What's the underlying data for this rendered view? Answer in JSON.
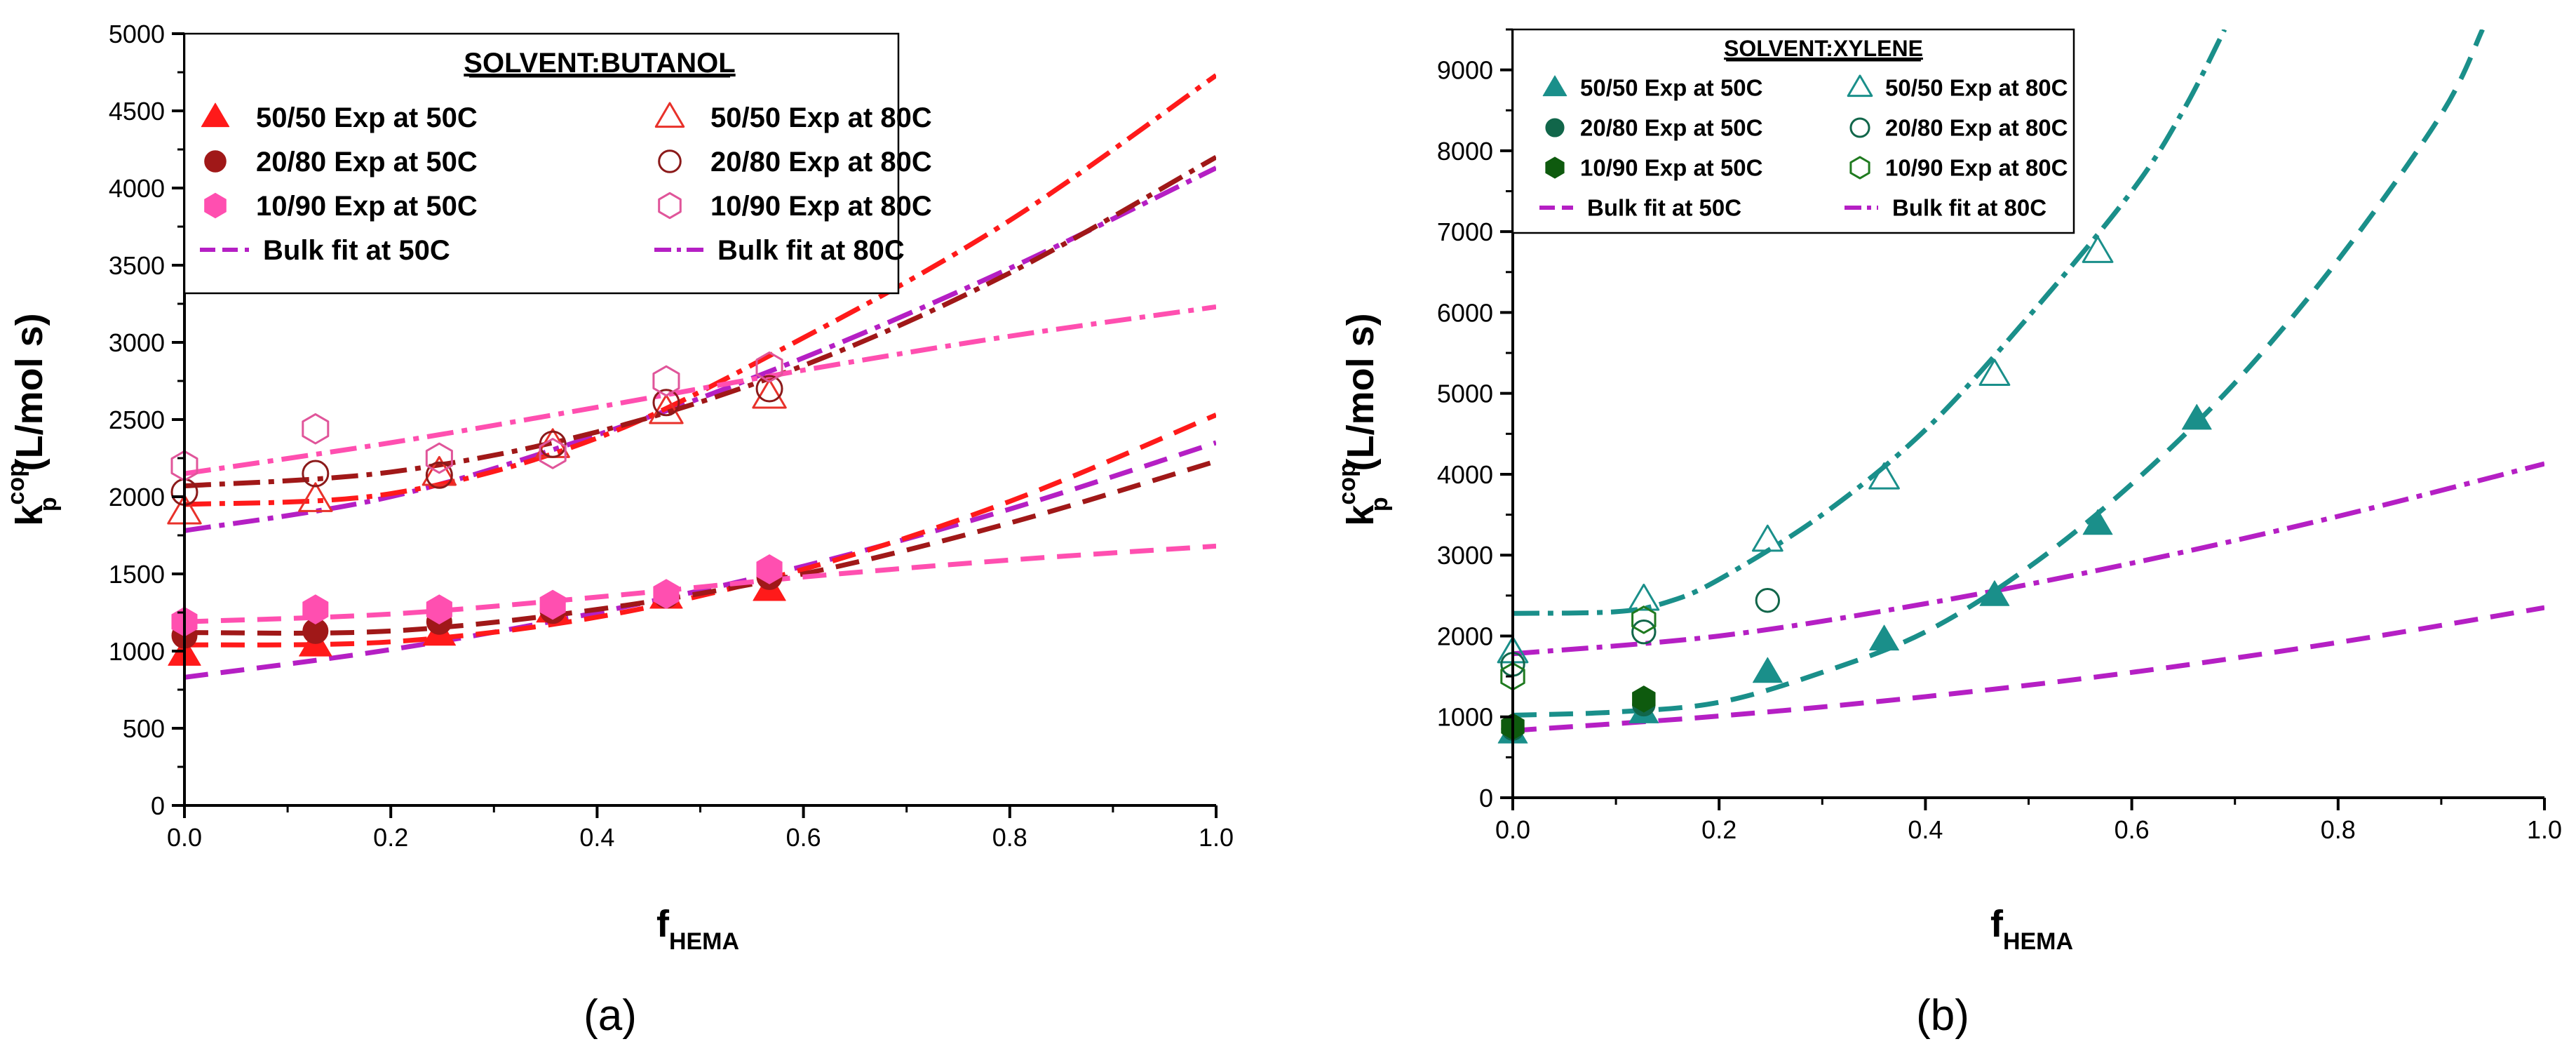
{
  "chart_data": [
    {
      "id": "a",
      "type": "scatter",
      "panel_label": "(a)",
      "ylabel_main": "k",
      "ylabel_sub": "p",
      "ylabel_sup": "cop",
      "ylabel_units": " (L/mol s)",
      "xlabel_main": "f",
      "xlabel_sub": "HEMA",
      "xlim": [
        0,
        1.0
      ],
      "ylim": [
        0,
        5000
      ],
      "xticks": [
        0,
        0.2,
        0.4,
        0.6,
        0.8,
        1.0
      ],
      "xtick_labels": [
        "0.0",
        "0.2",
        "0.4",
        "0.6",
        "0.8",
        "1.0"
      ],
      "yticks": [
        0,
        500,
        1000,
        1500,
        2000,
        2500,
        3000,
        3500,
        4000,
        4500,
        5000
      ],
      "ytick_labels": [
        "0",
        "500",
        "1000",
        "1500",
        "2000",
        "2500",
        "3000",
        "3500",
        "4000",
        "4500",
        "5000"
      ],
      "legend": {
        "title": "SOLVENT:BUTANOL",
        "position": "top-left",
        "entries": [
          {
            "label": "50/50 Exp at 50C",
            "marker": "triangle",
            "fill": true,
            "color": "#ff1a1a"
          },
          {
            "label": "50/50 Exp at 80C",
            "marker": "triangle",
            "fill": false,
            "color": "#e8312a"
          },
          {
            "label": "20/80 Exp at 50C",
            "marker": "circle",
            "fill": true,
            "color": "#a01818"
          },
          {
            "label": "20/80 Exp at 80C",
            "marker": "circle",
            "fill": false,
            "color": "#8b1a1a"
          },
          {
            "label": "10/90 Exp at 50C",
            "marker": "hexagon",
            "fill": true,
            "color": "#ff4fb0"
          },
          {
            "label": "10/90 Exp at 80C",
            "marker": "hexagon",
            "fill": false,
            "color": "#e0559a"
          },
          {
            "label": "Bulk fit at 50C",
            "line": "dash",
            "color": "#b51fc4"
          },
          {
            "label": "Bulk fit at 80C",
            "line": "dashdot",
            "color": "#b51fc4"
          }
        ]
      },
      "series": [
        {
          "name": "50/50 Exp at 50C",
          "marker": "triangle",
          "fill": true,
          "color": "#ff1a1a",
          "x": [
            0,
            0.127,
            0.247,
            0.357,
            0.467,
            0.567
          ],
          "y": [
            980,
            1040,
            1110,
            1260,
            1350,
            1400
          ]
        },
        {
          "name": "50/50 Exp at 80C",
          "marker": "triangle",
          "fill": false,
          "color": "#e8312a",
          "x": [
            0,
            0.127,
            0.247,
            0.357,
            0.467,
            0.567
          ],
          "y": [
            1900,
            1980,
            2150,
            2330,
            2550,
            2650
          ]
        },
        {
          "name": "20/80 Exp at 50C",
          "marker": "circle",
          "fill": true,
          "color": "#a01818",
          "x": [
            0,
            0.127,
            0.247,
            0.357,
            0.467,
            0.567
          ],
          "y": [
            1100,
            1130,
            1190,
            1260,
            1360,
            1480
          ]
        },
        {
          "name": "20/80 Exp at 80C",
          "marker": "circle",
          "fill": false,
          "color": "#8b1a1a",
          "x": [
            0,
            0.127,
            0.247,
            0.357,
            0.467,
            0.567
          ],
          "y": [
            2030,
            2150,
            2140,
            2340,
            2610,
            2700
          ]
        },
        {
          "name": "10/90 Exp at 50C",
          "marker": "hexagon",
          "fill": true,
          "color": "#ff4fb0",
          "x": [
            0,
            0.127,
            0.247,
            0.357,
            0.467,
            0.567
          ],
          "y": [
            1190,
            1270,
            1270,
            1300,
            1370,
            1530
          ]
        },
        {
          "name": "10/90 Exp at 80C",
          "marker": "hexagon",
          "fill": false,
          "color": "#e0559a",
          "x": [
            0,
            0.127,
            0.247,
            0.357,
            0.467,
            0.567
          ],
          "y": [
            2200,
            2440,
            2250,
            2280,
            2750,
            2840
          ]
        }
      ],
      "fits": [
        {
          "name": "Bulk fit at 50C",
          "line": "dash",
          "color": "#b51fc4",
          "x": [
            0,
            0.2,
            0.4,
            0.6,
            0.8,
            1.0
          ],
          "y": [
            830,
            1010,
            1250,
            1550,
            1920,
            2350
          ]
        },
        {
          "name": "Bulk fit at 80C",
          "line": "dashdot",
          "color": "#b51fc4",
          "x": [
            0,
            0.2,
            0.4,
            0.6,
            0.8,
            1.0
          ],
          "y": [
            1780,
            2000,
            2400,
            2900,
            3480,
            4130
          ]
        },
        {
          "name": "50/50 fit at 50C",
          "line": "dash",
          "color": "#ff1a1a",
          "x": [
            0,
            0.2,
            0.4,
            0.6,
            0.8,
            1.0
          ],
          "y": [
            1040,
            1060,
            1220,
            1530,
            1970,
            2530
          ]
        },
        {
          "name": "50/50 fit at 80C",
          "line": "dashdot",
          "color": "#ff1a1a",
          "x": [
            0,
            0.2,
            0.4,
            0.6,
            0.8,
            1.0
          ],
          "y": [
            1950,
            2020,
            2380,
            3030,
            3790,
            4730
          ]
        },
        {
          "name": "20/80 fit at 50C",
          "line": "dash",
          "color": "#a01818",
          "x": [
            0,
            0.2,
            0.4,
            0.6,
            0.8,
            1.0
          ],
          "y": [
            1120,
            1130,
            1270,
            1500,
            1830,
            2230
          ]
        },
        {
          "name": "20/80 fit at 80C",
          "line": "dashdot",
          "color": "#a01818",
          "x": [
            0,
            0.2,
            0.4,
            0.6,
            0.8,
            1.0
          ],
          "y": [
            2070,
            2160,
            2420,
            2850,
            3450,
            4200
          ]
        },
        {
          "name": "10/90 fit at 50C",
          "line": "dash",
          "color": "#ff4fb0",
          "x": [
            0,
            0.2,
            0.4,
            0.6,
            0.8,
            1.0
          ],
          "y": [
            1190,
            1240,
            1350,
            1480,
            1590,
            1680
          ]
        },
        {
          "name": "10/90 fit at 80C",
          "line": "dashdot",
          "color": "#ff4fb0",
          "x": [
            0,
            0.2,
            0.4,
            0.6,
            0.8,
            1.0
          ],
          "y": [
            2150,
            2350,
            2580,
            2820,
            3040,
            3230
          ]
        }
      ]
    },
    {
      "id": "b",
      "type": "scatter",
      "panel_label": "(b)",
      "ylabel_main": "k",
      "ylabel_sub": "p",
      "ylabel_sup": "cop",
      "ylabel_units": " (L/mol s)",
      "xlabel_main": "f",
      "xlabel_sub": "HEMA",
      "xlim": [
        0,
        1.0
      ],
      "ylim": [
        0,
        9500
      ],
      "xticks": [
        0,
        0.2,
        0.4,
        0.6,
        0.8,
        1.0
      ],
      "xtick_labels": [
        "0.0",
        "0.2",
        "0.4",
        "0.6",
        "0.8",
        "1.0"
      ],
      "yticks": [
        0,
        1000,
        2000,
        3000,
        4000,
        5000,
        6000,
        7000,
        8000,
        9000
      ],
      "ytick_labels": [
        "0",
        "1000",
        "2000",
        "3000",
        "4000",
        "5000",
        "6000",
        "7000",
        "8000",
        "9000"
      ],
      "legend": {
        "title": "SOLVENT:XYLENE",
        "position": "top-left",
        "entries": [
          {
            "label": "50/50 Exp at 50C",
            "marker": "triangle",
            "fill": true,
            "color": "#1a8f8a"
          },
          {
            "label": "50/50 Exp at 80C",
            "marker": "triangle",
            "fill": false,
            "color": "#1a8f8a"
          },
          {
            "label": "20/80 Exp at 50C",
            "marker": "circle",
            "fill": true,
            "color": "#11664a"
          },
          {
            "label": "20/80 Exp at 80C",
            "marker": "circle",
            "fill": false,
            "color": "#11664a"
          },
          {
            "label": "10/90 Exp at 50C",
            "marker": "hexagon",
            "fill": true,
            "color": "#0e5a0e"
          },
          {
            "label": "10/90 Exp at 80C",
            "marker": "hexagon",
            "fill": false,
            "color": "#1f7a1f"
          },
          {
            "label": "Bulk fit at 50C",
            "line": "dash",
            "color": "#b51fc4"
          },
          {
            "label": "Bulk fit at 80C",
            "line": "dashdot",
            "color": "#b51fc4"
          }
        ]
      },
      "series": [
        {
          "name": "50/50 Exp at 50C",
          "marker": "triangle",
          "fill": true,
          "color": "#1a8f8a",
          "x": [
            0,
            0.127,
            0.247,
            0.36,
            0.467,
            0.567,
            0.663
          ],
          "y": [
            800,
            1050,
            1550,
            1950,
            2500,
            3380,
            4680
          ]
        },
        {
          "name": "50/50 Exp at 80C",
          "marker": "triangle",
          "fill": false,
          "color": "#1a8f8a",
          "x": [
            0,
            0.127,
            0.247,
            0.36,
            0.467,
            0.567
          ],
          "y": [
            1800,
            2450,
            3180,
            3950,
            5230,
            6750
          ]
        },
        {
          "name": "20/80 Exp at 50C",
          "marker": "circle",
          "fill": true,
          "color": "#11664a",
          "x": [
            0,
            0.127
          ],
          "y": [
            850,
            1150
          ]
        },
        {
          "name": "20/80 Exp at 80C",
          "marker": "circle",
          "fill": false,
          "color": "#11664a",
          "x": [
            0,
            0.127,
            0.247
          ],
          "y": [
            1650,
            2050,
            2440
          ]
        },
        {
          "name": "10/90 Exp at 50C",
          "marker": "hexagon",
          "fill": true,
          "color": "#0e5a0e",
          "x": [
            0,
            0.127
          ],
          "y": [
            880,
            1220
          ]
        },
        {
          "name": "10/90 Exp at 80C",
          "marker": "hexagon",
          "fill": false,
          "color": "#1f7a1f",
          "x": [
            0,
            0.127
          ],
          "y": [
            1500,
            2200
          ]
        }
      ],
      "fits": [
        {
          "name": "Bulk fit at 50C",
          "line": "dash",
          "color": "#b51fc4",
          "x": [
            0,
            0.2,
            0.4,
            0.6,
            0.8,
            1.0
          ],
          "y": [
            830,
            1010,
            1250,
            1550,
            1920,
            2350
          ]
        },
        {
          "name": "Bulk fit at 80C",
          "line": "dashdot",
          "color": "#b51fc4",
          "x": [
            0,
            0.2,
            0.4,
            0.6,
            0.8,
            1.0
          ],
          "y": [
            1780,
            2000,
            2400,
            2900,
            3480,
            4130
          ]
        },
        {
          "name": "50/50 fit at 50C",
          "line": "dash",
          "color": "#1a8f8a",
          "x": [
            0,
            0.1,
            0.2,
            0.3,
            0.4,
            0.5,
            0.6,
            0.7,
            0.8,
            0.9,
            0.94
          ],
          "y": [
            1020,
            1060,
            1180,
            1550,
            2050,
            2850,
            3880,
            5130,
            6650,
            8450,
            9500
          ]
        },
        {
          "name": "50/50 fit at 80C",
          "line": "dashdot",
          "color": "#1a8f8a",
          "x": [
            0,
            0.1,
            0.15,
            0.2,
            0.3,
            0.4,
            0.5,
            0.6,
            0.65,
            0.69
          ],
          "y": [
            2280,
            2300,
            2420,
            2700,
            3500,
            4550,
            5950,
            7500,
            8500,
            9500
          ]
        }
      ]
    }
  ]
}
